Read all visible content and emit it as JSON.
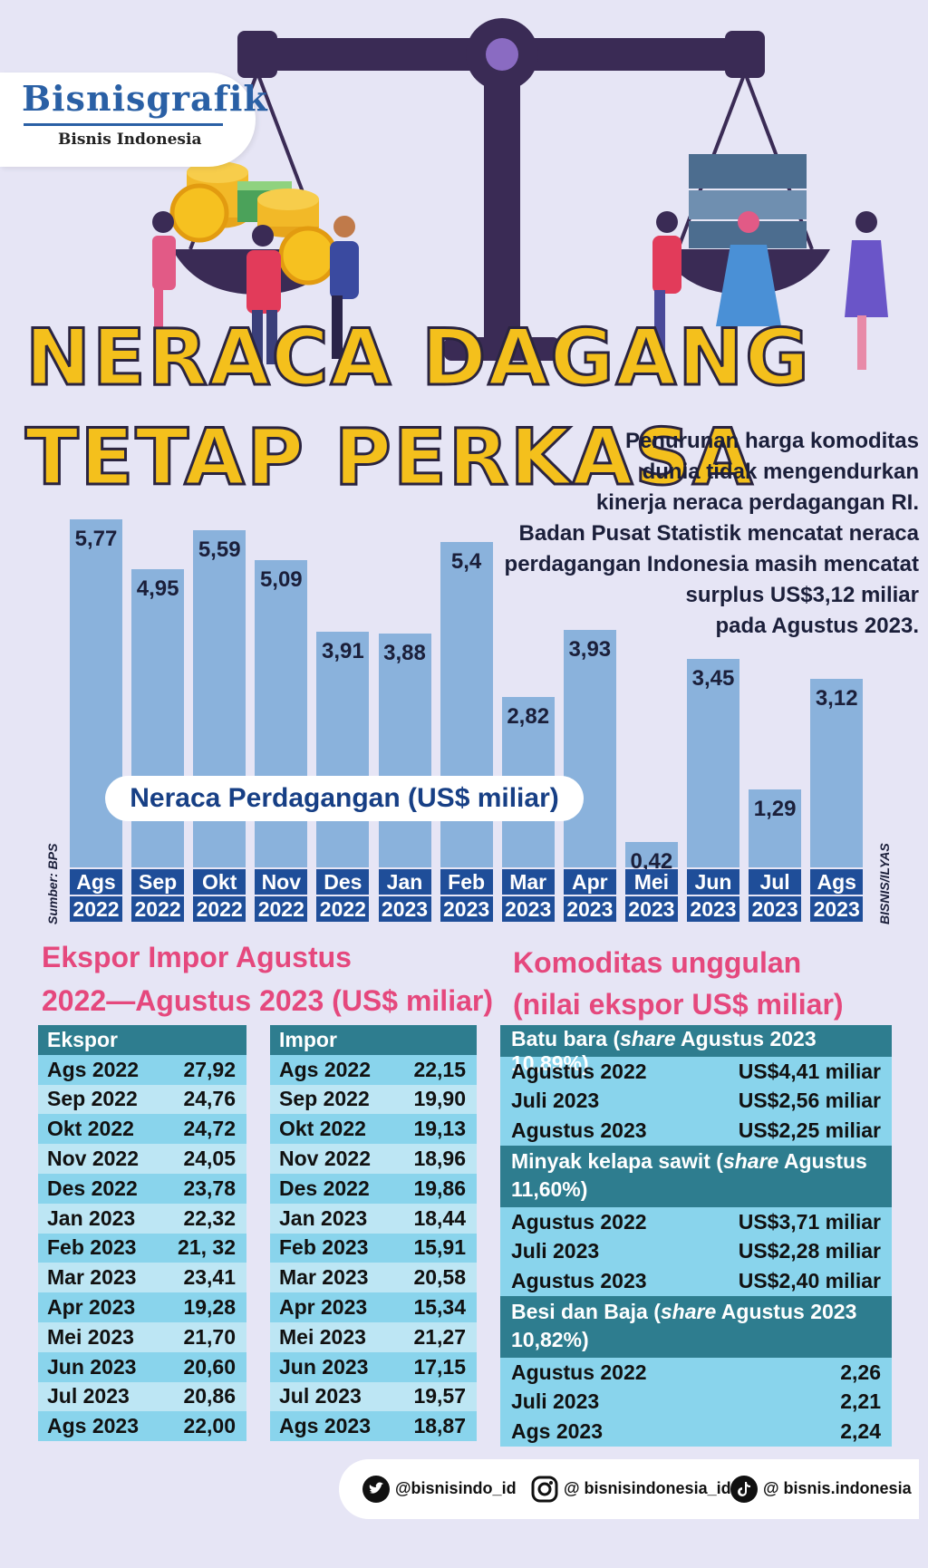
{
  "brand": {
    "name": "Bisnisgrafik",
    "sub": "Bisnis Indonesia"
  },
  "title": {
    "line1": "NERACA DAGANG",
    "line2": "TETAP PERKASA"
  },
  "intro": [
    "Penurunan harga komoditas",
    "dunia tidak mengendurkan",
    "kinerja neraca perdagangan RI.",
    "Badan Pusat Statistik mencatat neraca",
    "perdagangan Indonesia masih mencatat",
    "surplus US$3,12 miliar",
    "pada Agustus 2023."
  ],
  "chart_data": {
    "type": "bar",
    "title": "Neraca Perdagangan (US$ miliar)",
    "categories": [
      [
        "Ags",
        "2022"
      ],
      [
        "Sep",
        "2022"
      ],
      [
        "Okt",
        "2022"
      ],
      [
        "Nov",
        "2022"
      ],
      [
        "Des",
        "2022"
      ],
      [
        "Jan",
        "2023"
      ],
      [
        "Feb",
        "2023"
      ],
      [
        "Mar",
        "2023"
      ],
      [
        "Apr",
        "2023"
      ],
      [
        "Mei",
        "2023"
      ],
      [
        "Jun",
        "2023"
      ],
      [
        "Jul",
        "2023"
      ],
      [
        "Ags",
        "2023"
      ]
    ],
    "values": [
      5.77,
      4.95,
      5.59,
      5.09,
      3.91,
      3.88,
      5.4,
      2.82,
      3.93,
      0.42,
      3.45,
      1.29,
      3.12
    ],
    "value_labels": [
      "5,77",
      "4,95",
      "5,59",
      "5,09",
      "3,91",
      "3,88",
      "5,4",
      "2,82",
      "3,93",
      "0,42",
      "3,45",
      "1,29",
      "3,12"
    ],
    "ylim": [
      0,
      6
    ],
    "grid": false,
    "legend": "none"
  },
  "source": "Sumber: BPS",
  "credit": "BISNIS/ILYAS",
  "ekspor_impor": {
    "title_line1": "Ekspor Impor Agustus",
    "title_line2": "2022—Agustus 2023 (US$ miliar)",
    "ekspor": {
      "header": "Ekspor",
      "rows": [
        [
          "Ags 2022",
          "27,92"
        ],
        [
          "Sep 2022",
          "24,76"
        ],
        [
          "Okt 2022",
          "24,72"
        ],
        [
          "Nov 2022",
          "24,05"
        ],
        [
          "Des 2022",
          "23,78"
        ],
        [
          "Jan 2023",
          "22,32"
        ],
        [
          "Feb 2023",
          "21, 32"
        ],
        [
          "Mar 2023",
          "23,41"
        ],
        [
          "Apr 2023",
          "19,28"
        ],
        [
          "Mei 2023",
          "21,70"
        ],
        [
          "Jun 2023",
          "20,60"
        ],
        [
          "Jul 2023",
          "20,86"
        ],
        [
          "Ags 2023",
          "22,00"
        ]
      ]
    },
    "impor": {
      "header": "Impor",
      "rows": [
        [
          "Ags 2022",
          "22,15"
        ],
        [
          "Sep 2022",
          "19,90"
        ],
        [
          "Okt 2022",
          "19,13"
        ],
        [
          "Nov 2022",
          "18,96"
        ],
        [
          "Des 2022",
          "19,86"
        ],
        [
          "Jan 2023",
          "18,44"
        ],
        [
          "Feb 2023",
          "15,91"
        ],
        [
          "Mar 2023",
          "20,58"
        ],
        [
          "Apr 2023",
          "15,34"
        ],
        [
          "Mei 2023",
          "21,27"
        ],
        [
          "Jun 2023",
          "17,15"
        ],
        [
          "Jul 2023",
          "19,57"
        ],
        [
          "Ags 2023",
          "18,87"
        ]
      ]
    }
  },
  "komoditas": {
    "title_line1": "Komoditas unggulan",
    "title_line2": "(nilai ekspor US$ miliar)",
    "groups": [
      {
        "h1": "Batu bara (",
        "hi": "share",
        "h2": " Agustus 2023 10,89%)",
        "rows": [
          [
            "Agustus 2022",
            "US$4,41 miliar"
          ],
          [
            "Juli 2023",
            "US$2,56 miliar"
          ],
          [
            "Agustus 2023",
            "US$2,25 miliar"
          ]
        ]
      },
      {
        "h1": "Minyak kelapa sawit (",
        "hi": "share",
        "h2": " Agustus 11,60%)",
        "rows": [
          [
            "Agustus 2022",
            "US$3,71 miliar"
          ],
          [
            "Juli 2023",
            "US$2,28 miliar"
          ],
          [
            "Agustus 2023",
            "US$2,40 miliar"
          ]
        ]
      },
      {
        "h1": "Besi dan Baja (",
        "hi": "share",
        "h2": " Agustus 2023 10,82%)",
        "rows": [
          [
            "Agustus 2022",
            "2,26"
          ],
          [
            "Juli 2023",
            "2,21"
          ],
          [
            "Ags 2023",
            "2,24"
          ]
        ]
      }
    ]
  },
  "social": {
    "twitter": "@bisnisindo_id",
    "instagram": "@ bisnisindonesia_id",
    "tiktok": "@ bisnis.indonesia"
  }
}
